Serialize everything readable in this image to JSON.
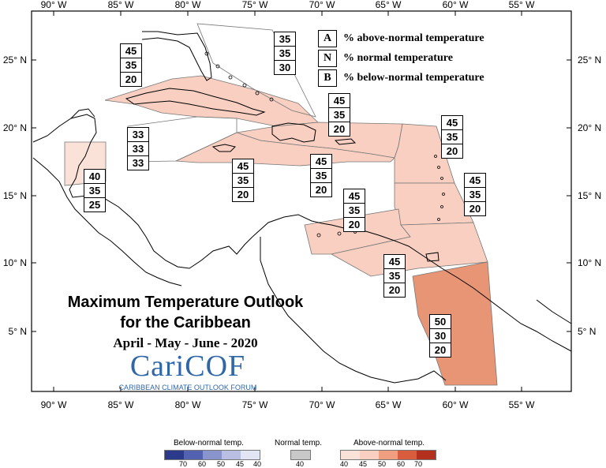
{
  "axes": {
    "lon_top": [
      "90° W",
      "85° W",
      "80° W",
      "75° W",
      "70° W",
      "65° W",
      "60° W",
      "55° W"
    ],
    "lon_bottom": [
      "90° W",
      "85° W",
      "80° W",
      "75° W",
      "70° W",
      "65° W",
      "60° W",
      "55° W"
    ],
    "lat_left": [
      "25° N",
      "20° N",
      "15° N",
      "10° N",
      "5° N"
    ],
    "lat_right": [
      "25° N",
      "20° N",
      "15° N",
      "10° N",
      "5° N"
    ]
  },
  "legend": {
    "a": {
      "key": "A",
      "text": "% above-normal temperature"
    },
    "n": {
      "key": "N",
      "text": "% normal temperature"
    },
    "b": {
      "key": "B",
      "text": "% below-normal temperature"
    }
  },
  "title": {
    "line1": "Maximum Temperature Outlook",
    "line2": "for the Caribbean",
    "line3": "April - May - June - 2020"
  },
  "logo": {
    "main": "CariCOF",
    "sub": "CARIBBEAN CLIMATE OUTLOOK FORUM"
  },
  "regions": [
    {
      "id": "cuba",
      "a": "45",
      "n": "35",
      "b": "20"
    },
    {
      "id": "bahamas",
      "a": "35",
      "n": "35",
      "b": "30"
    },
    {
      "id": "hispaniola-north",
      "a": "45",
      "n": "35",
      "b": "20"
    },
    {
      "id": "leeward",
      "a": "45",
      "n": "35",
      "b": "20"
    },
    {
      "id": "cayman-sea",
      "a": "33",
      "n": "33",
      "b": "33"
    },
    {
      "id": "belize",
      "a": "40",
      "n": "35",
      "b": "25"
    },
    {
      "id": "jamaica",
      "a": "45",
      "n": "35",
      "b": "20"
    },
    {
      "id": "hispaniola-south",
      "a": "45",
      "n": "35",
      "b": "20"
    },
    {
      "id": "windward",
      "a": "45",
      "n": "35",
      "b": "20"
    },
    {
      "id": "abc-islands",
      "a": "45",
      "n": "35",
      "b": "20"
    },
    {
      "id": "trinidad",
      "a": "45",
      "n": "35",
      "b": "20"
    },
    {
      "id": "guianas",
      "a": "50",
      "n": "30",
      "b": "20"
    }
  ],
  "colors": {
    "above_45": "#f8cfc0",
    "above_40": "#fbe2d8",
    "above_50": "#e89576",
    "normal": "#ffffff"
  },
  "colorscale": {
    "below": {
      "title": "Below-normal temp.",
      "ticks": [
        "70",
        "60",
        "50",
        "45",
        "40"
      ],
      "colors": [
        "#2c3a8c",
        "#5261b0",
        "#8a94cc",
        "#b9bfe2",
        "#e2e5f4"
      ]
    },
    "normal": {
      "title": "Normal temp.",
      "ticks": [
        "40"
      ],
      "colors": [
        "#c8c8c8"
      ]
    },
    "above": {
      "title": "Above-normal temp.",
      "ticks": [
        "40",
        "45",
        "50",
        "60",
        "70"
      ],
      "colors": [
        "#fbe2d8",
        "#f8cfc0",
        "#ef9e80",
        "#d95d3c",
        "#b3301e"
      ]
    }
  }
}
